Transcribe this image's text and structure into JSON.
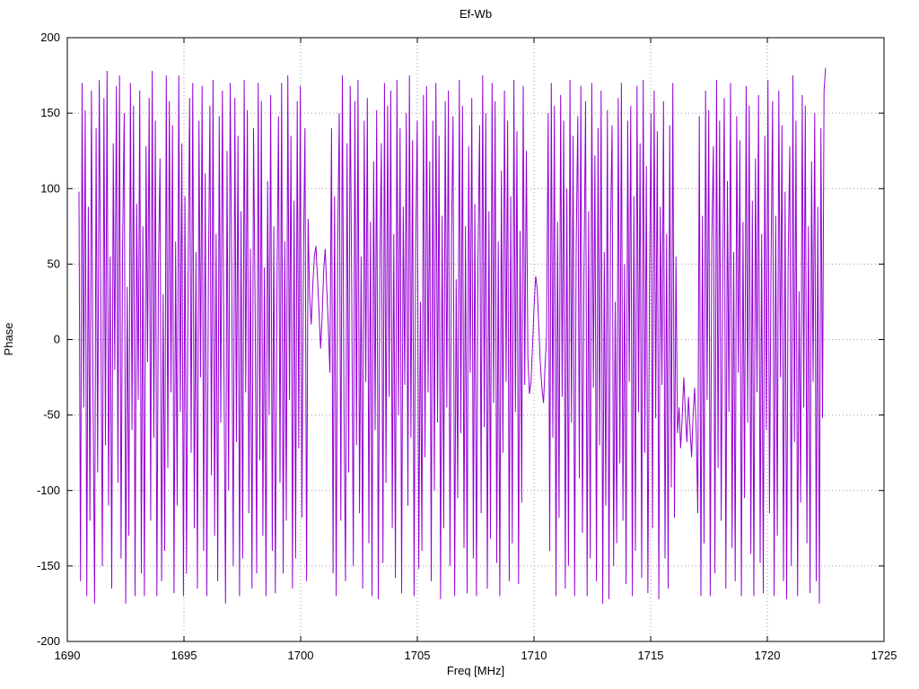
{
  "chart_data": {
    "type": "line",
    "title": "Ef-Wb",
    "xlabel": "Freq [MHz]",
    "ylabel": "Phase",
    "xlim": [
      1690,
      1725
    ],
    "ylim": [
      -200,
      200
    ],
    "x_ticks": [
      1690,
      1695,
      1700,
      1705,
      1710,
      1715,
      1720,
      1725
    ],
    "y_ticks": [
      -200,
      -150,
      -100,
      -50,
      0,
      50,
      100,
      150,
      200
    ],
    "grid": true,
    "legend": "none",
    "line_color": "#9400d3",
    "grid_color": "#9a9a9a",
    "x_start": 1690.5,
    "x_step": 0.0668,
    "values": [
      98,
      -160,
      170,
      -45,
      152,
      -170,
      88,
      -120,
      165,
      -30,
      -175,
      140,
      -88,
      172,
      25,
      -150,
      160,
      -70,
      178,
      -110,
      55,
      -165,
      130,
      -20,
      168,
      -95,
      175,
      -145,
      62,
      150,
      -175,
      35,
      -130,
      170,
      -60,
      155,
      -170,
      90,
      -40,
      165,
      -155,
      75,
      -170,
      128,
      -15,
      160,
      -120,
      178,
      -65,
      145,
      -170,
      50,
      120,
      -160,
      30,
      -140,
      175,
      -85,
      158,
      -35,
      142,
      -168,
      65,
      -110,
      175,
      -48,
      130,
      -170,
      95,
      -155,
      40,
      160,
      -75,
      170,
      -125,
      58,
      -165,
      145,
      -25,
      168,
      -140,
      110,
      -170,
      38,
      155,
      -90,
      172,
      -130,
      70,
      -160,
      148,
      -55,
      165,
      -15,
      -175,
      125,
      -100,
      170,
      45,
      -150,
      160,
      -68,
      135,
      -170,
      85,
      -145,
      172,
      -35,
      152,
      -115,
      60,
      -165,
      140,
      20,
      -155,
      170,
      -80,
      158,
      -130,
      48,
      -170,
      105,
      -50,
      162,
      -140,
      75,
      -168,
      32,
      148,
      -95,
      170,
      -155,
      65,
      -120,
      175,
      -40,
      135,
      -165,
      92,
      -145,
      158,
      -72,
      168,
      -118,
      52,
      140,
      -160,
      80,
      28,
      10,
      36,
      55,
      62,
      42,
      18,
      -6,
      14,
      46,
      60,
      32,
      8,
      -22,
      140,
      -155,
      95,
      -170,
      62,
      150,
      -120,
      175,
      -45,
      -160,
      130,
      -88,
      168,
      35,
      -150,
      158,
      -70,
      172,
      -115,
      55,
      -165,
      145,
      -28,
      160,
      -135,
      78,
      -170,
      118,
      -60,
      152,
      -172,
      42,
      130,
      -148,
      170,
      -95,
      155,
      -38,
      165,
      -125,
      70,
      -158,
      172,
      -50,
      140,
      -168,
      88,
      -30,
      150,
      -110,
      175,
      -65,
      132,
      -170,
      58,
      145,
      -152,
      25,
      -140,
      162,
      -78,
      168,
      -35,
      118,
      -160,
      145,
      -100,
      170,
      -55,
      135,
      -172,
      82,
      -125,
      158,
      -45,
      165,
      -150,
      68,
      148,
      -170,
      40,
      -105,
      172,
      -62,
      155,
      -138,
      75,
      -168,
      128,
      -22,
      160,
      -145,
      90,
      -170,
      52,
      142,
      -115,
      175,
      -58,
      150,
      -165,
      85,
      -132,
      170,
      -42,
      158,
      -148,
      65,
      -170,
      112,
      -75,
      165,
      -28,
      145,
      -160,
      95,
      -135,
      172,
      -48,
      138,
      -162,
      72,
      -108,
      168,
      -30,
      125,
      -12,
      -36,
      -28,
      -4,
      22,
      42,
      34,
      8,
      -16,
      -32,
      -42,
      -18,
      2,
      150,
      -140,
      170,
      -65,
      155,
      -170,
      78,
      -118,
      162,
      -38,
      145,
      -165,
      100,
      -150,
      172,
      -55,
      135,
      -170,
      62,
      148,
      -92,
      168,
      -128,
      45,
      158,
      -170,
      85,
      -145,
      170,
      -32,
      122,
      -160,
      140,
      -70,
      165,
      -175,
      58,
      -110,
      152,
      -172,
      68,
      142,
      -150,
      25,
      -135,
      160,
      -82,
      170,
      -120,
      50,
      -162,
      145,
      -28,
      155,
      -170,
      95,
      -140,
      168,
      -48,
      130,
      -158,
      172,
      -75,
      115,
      -168,
      35,
      150,
      -125,
      165,
      -52,
      138,
      -172,
      88,
      -30,
      158,
      -145,
      70,
      -165,
      142,
      -98,
      170,
      -118,
      55,
      -62,
      -45,
      -72,
      -52,
      -25,
      -48,
      -68,
      -38,
      -58,
      -78,
      -50,
      -32,
      -60,
      -115,
      148,
      -170,
      82,
      -135,
      165,
      -40,
      152,
      -170,
      65,
      128,
      -155,
      172,
      -85,
      145,
      -120,
      38,
      160,
      -165,
      105,
      -48,
      170,
      -138,
      58,
      -160,
      148,
      -22,
      132,
      -170,
      78,
      -105,
      168,
      -55,
      155,
      -142,
      92,
      -170,
      120,
      -35,
      162,
      -148,
      70,
      -168,
      135,
      -60,
      172,
      -115,
      48,
      158,
      -170,
      82,
      -130,
      165,
      -25,
      142,
      -160,
      98,
      -172,
      52,
      128,
      -150,
      175,
      -68,
      145,
      -170,
      32,
      -108,
      162,
      -45,
      155,
      -135,
      75,
      -168,
      118,
      -28,
      150,
      -160,
      88,
      -175,
      140,
      -52,
      165,
      180
    ]
  }
}
